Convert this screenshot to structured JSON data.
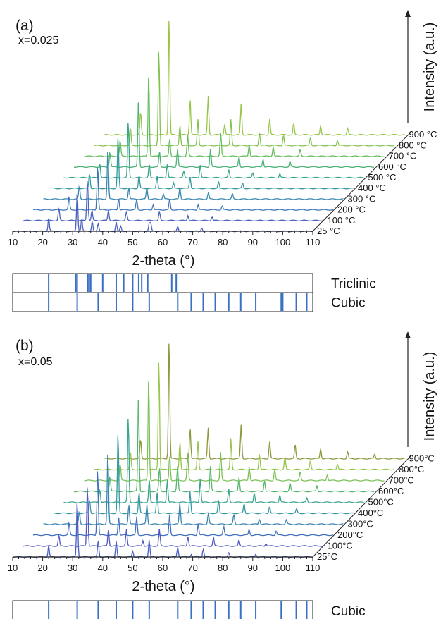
{
  "chart_data": [
    {
      "type": "line",
      "panel_label": "(a)",
      "composition": "x=0.025",
      "xlabel": "2-theta (°)",
      "zlabel": "Intensity (a.u.)",
      "xlim": [
        10,
        110
      ],
      "x_ticks": [
        "10",
        "20",
        "30",
        "40",
        "50",
        "60",
        "70",
        "80",
        "90",
        "100",
        "110"
      ],
      "series_labels": [
        "25 °C",
        "100 °C",
        "200 °C",
        "300 °C",
        "400 °C",
        "500 °C",
        "600 °C",
        "700 °C",
        "800 °C",
        "900 °C"
      ],
      "patterns": [
        {
          "label": "25 °C",
          "color": "#4a5fc1",
          "peaks": [
            [
              22,
              0.5
            ],
            [
              31.5,
              1.5
            ],
            [
              33,
              0.5
            ],
            [
              36.5,
              0.4
            ],
            [
              38.5,
              0.3
            ],
            [
              44.5,
              0.35
            ],
            [
              46,
              0.2
            ],
            [
              55.5,
              0.3
            ],
            [
              56,
              0.3
            ],
            [
              65,
              0.2
            ],
            [
              73,
              0.15
            ]
          ]
        },
        {
          "label": "100 °C",
          "color": "#4a66bd",
          "peaks": [
            [
              22,
              0.5
            ],
            [
              31.5,
              1.6
            ],
            [
              33,
              0.4
            ],
            [
              38.5,
              0.4
            ],
            [
              44.5,
              0.35
            ],
            [
              55.5,
              0.35
            ],
            [
              65,
              0.2
            ],
            [
              73,
              0.15
            ]
          ]
        },
        {
          "label": "200 °C",
          "color": "#3f75b9",
          "peaks": [
            [
              22,
              0.5
            ],
            [
              31.5,
              1.7
            ],
            [
              38.5,
              0.45
            ],
            [
              44.5,
              0.4
            ],
            [
              50,
              0.2
            ],
            [
              55.5,
              0.4
            ],
            [
              65,
              0.2
            ],
            [
              73,
              0.15
            ]
          ]
        },
        {
          "label": "300 °C",
          "color": "#3a88b0",
          "peaks": [
            [
              22,
              0.5
            ],
            [
              31.5,
              1.9
            ],
            [
              38.5,
              0.45
            ],
            [
              44.5,
              0.45
            ],
            [
              50,
              0.2
            ],
            [
              55.5,
              0.45
            ],
            [
              65,
              0.25
            ],
            [
              73,
              0.2
            ]
          ]
        },
        {
          "label": "400 °C",
          "color": "#37999f",
          "peaks": [
            [
              22,
              0.6
            ],
            [
              31.5,
              2.0
            ],
            [
              38.5,
              0.5
            ],
            [
              44.5,
              0.5
            ],
            [
              50,
              0.2
            ],
            [
              55.5,
              0.45
            ],
            [
              65,
              0.25
            ],
            [
              73,
              0.2
            ]
          ]
        },
        {
          "label": "500 °C",
          "color": "#3aa68d",
          "peaks": [
            [
              22,
              0.6
            ],
            [
              31.5,
              2.2
            ],
            [
              38.5,
              0.5
            ],
            [
              44.5,
              0.55
            ],
            [
              50,
              0.25
            ],
            [
              55.5,
              0.5
            ],
            [
              65,
              0.3
            ],
            [
              73,
              0.2
            ],
            [
              82,
              0.15
            ]
          ]
        },
        {
          "label": "600 °C",
          "color": "#4cb277",
          "peaks": [
            [
              22,
              0.6
            ],
            [
              31.5,
              2.6
            ],
            [
              38.5,
              0.6
            ],
            [
              44.5,
              0.7
            ],
            [
              55.5,
              0.7
            ],
            [
              65,
              0.4
            ],
            [
              73,
              0.3
            ],
            [
              82,
              0.2
            ]
          ]
        },
        {
          "label": "700 °C",
          "color": "#66bd5e",
          "peaks": [
            [
              22,
              0.6
            ],
            [
              31.5,
              3.2
            ],
            [
              38.5,
              0.7
            ],
            [
              44.5,
              0.8
            ],
            [
              55.5,
              0.9
            ],
            [
              65,
              0.45
            ],
            [
              73,
              0.35
            ],
            [
              82,
              0.25
            ]
          ]
        },
        {
          "label": "800 °C",
          "color": "#82c350",
          "peaks": [
            [
              22,
              0.7
            ],
            [
              31.5,
              3.8
            ],
            [
              38.5,
              0.8
            ],
            [
              44.5,
              1.0
            ],
            [
              55.5,
              1.0
            ],
            [
              65,
              0.5
            ],
            [
              73,
              0.4
            ],
            [
              82,
              0.3
            ],
            [
              91,
              0.2
            ]
          ]
        },
        {
          "label": "900 °C",
          "color": "#98c747",
          "peaks": [
            [
              22,
              0.9
            ],
            [
              31.5,
              4.6
            ],
            [
              38.5,
              1.4
            ],
            [
              44.5,
              1.5
            ],
            [
              50,
              0.4
            ],
            [
              55.5,
              1.2
            ],
            [
              65,
              0.6
            ],
            [
              73,
              0.45
            ],
            [
              82,
              0.35
            ],
            [
              91,
              0.25
            ]
          ]
        }
      ],
      "reference_phases": [
        {
          "name": "Triclinic",
          "lines": [
            22,
            31,
            31.5,
            35,
            35.5,
            36,
            40,
            44.5,
            47,
            50,
            52,
            53,
            55,
            63,
            64.5
          ]
        },
        {
          "name": "Cubic",
          "lines": [
            22,
            31.5,
            38.5,
            44.5,
            50,
            55.5,
            65,
            69.5,
            73.5,
            77.5,
            82,
            86,
            91,
            99.5,
            100,
            104.5,
            108
          ]
        }
      ]
    },
    {
      "type": "line",
      "panel_label": "(b)",
      "composition": "x=0.05",
      "xlabel": "2-theta (°)",
      "zlabel": "Intensity (a.u.)",
      "xlim": [
        10,
        110
      ],
      "x_ticks": [
        "10",
        "20",
        "30",
        "40",
        "50",
        "60",
        "70",
        "80",
        "90",
        "100",
        "110"
      ],
      "series_labels": [
        "25°C",
        "100°C",
        "200°C",
        "300°C",
        "400°C",
        "500°C",
        "600°C",
        "700°C",
        "800°C",
        "900°C"
      ],
      "patterns": [
        {
          "label": "25°C",
          "color": "#4a5fc1",
          "peaks": [
            [
              22,
              0.4
            ],
            [
              31.5,
              2.0
            ],
            [
              38.5,
              0.6
            ],
            [
              44.5,
              0.55
            ],
            [
              50,
              0.2
            ],
            [
              55.5,
              0.6
            ],
            [
              65,
              0.35
            ],
            [
              69.5,
              0.1
            ],
            [
              73.5,
              0.3
            ],
            [
              82,
              0.15
            ],
            [
              91,
              0.1
            ]
          ]
        },
        {
          "label": "100°C",
          "color": "#5458c2",
          "peaks": [
            [
              22,
              0.4
            ],
            [
              31.5,
              2.2
            ],
            [
              38.5,
              0.6
            ],
            [
              44.5,
              0.6
            ],
            [
              50,
              0.2
            ],
            [
              55.5,
              0.6
            ],
            [
              65,
              0.35
            ],
            [
              73.5,
              0.3
            ],
            [
              82,
              0.2
            ],
            [
              91,
              0.1
            ]
          ]
        },
        {
          "label": "200°C",
          "color": "#3f6fbe",
          "peaks": [
            [
              22,
              0.45
            ],
            [
              31.5,
              2.4
            ],
            [
              38.5,
              0.65
            ],
            [
              44.5,
              0.65
            ],
            [
              55.5,
              0.7
            ],
            [
              65,
              0.4
            ],
            [
              73.5,
              0.3
            ],
            [
              82,
              0.2
            ],
            [
              91,
              0.15
            ]
          ]
        },
        {
          "label": "300°C",
          "color": "#3a84b3",
          "peaks": [
            [
              22,
              0.45
            ],
            [
              31.5,
              2.6
            ],
            [
              38.5,
              0.7
            ],
            [
              44.5,
              0.7
            ],
            [
              55.5,
              0.75
            ],
            [
              65,
              0.4
            ],
            [
              73.5,
              0.35
            ],
            [
              82,
              0.2
            ],
            [
              91,
              0.15
            ]
          ]
        },
        {
          "label": "400°C",
          "color": "#3799a2",
          "peaks": [
            [
              22,
              0.5
            ],
            [
              31.5,
              2.9
            ],
            [
              38.5,
              0.75
            ],
            [
              44.5,
              0.75
            ],
            [
              55.5,
              0.8
            ],
            [
              65,
              0.45
            ],
            [
              73.5,
              0.35
            ],
            [
              82,
              0.25
            ],
            [
              91,
              0.15
            ]
          ]
        },
        {
          "label": "500°C",
          "color": "#3aa68e",
          "peaks": [
            [
              22,
              0.5
            ],
            [
              31.5,
              3.1
            ],
            [
              38.5,
              0.8
            ],
            [
              44.5,
              0.8
            ],
            [
              55.5,
              0.85
            ],
            [
              65,
              0.45
            ],
            [
              73.5,
              0.35
            ],
            [
              82,
              0.25
            ],
            [
              91,
              0.15
            ]
          ]
        },
        {
          "label": "600°C",
          "color": "#56b66f",
          "peaks": [
            [
              22,
              0.55
            ],
            [
              31.5,
              3.4
            ],
            [
              38.5,
              0.85
            ],
            [
              44.5,
              0.9
            ],
            [
              55.5,
              0.9
            ],
            [
              65,
              0.5
            ],
            [
              73.5,
              0.4
            ],
            [
              82,
              0.3
            ],
            [
              91,
              0.2
            ]
          ]
        },
        {
          "label": "700°C",
          "color": "#7bc158",
          "peaks": [
            [
              22,
              0.6
            ],
            [
              31.5,
              3.7
            ],
            [
              38.5,
              0.9
            ],
            [
              44.5,
              0.95
            ],
            [
              55.5,
              1.0
            ],
            [
              65,
              0.5
            ],
            [
              73.5,
              0.4
            ],
            [
              82,
              0.3
            ],
            [
              91,
              0.2
            ]
          ]
        },
        {
          "label": "800°C",
          "color": "#96c64c",
          "peaks": [
            [
              22,
              0.65
            ],
            [
              31.5,
              4.0
            ],
            [
              38.5,
              1.0
            ],
            [
              44.5,
              1.0
            ],
            [
              55.5,
              1.1
            ],
            [
              65,
              0.55
            ],
            [
              73.5,
              0.45
            ],
            [
              82,
              0.3
            ],
            [
              91,
              0.2
            ]
          ]
        },
        {
          "label": "900°C",
          "color": "#8a9a3c",
          "peaks": [
            [
              22,
              0.7
            ],
            [
              31.5,
              4.3
            ],
            [
              38.5,
              1.1
            ],
            [
              44.5,
              1.1
            ],
            [
              55.5,
              1.2
            ],
            [
              65,
              0.6
            ],
            [
              73.5,
              0.5
            ],
            [
              82,
              0.35
            ],
            [
              91,
              0.25
            ],
            [
              100,
              0.15
            ]
          ]
        }
      ],
      "reference_phases": [
        {
          "name": "Cubic",
          "lines": [
            22,
            31.5,
            38.5,
            44.5,
            50,
            55.5,
            65,
            69.5,
            73.5,
            77.5,
            82,
            86,
            91,
            99.5,
            104.5,
            108
          ]
        }
      ]
    }
  ]
}
